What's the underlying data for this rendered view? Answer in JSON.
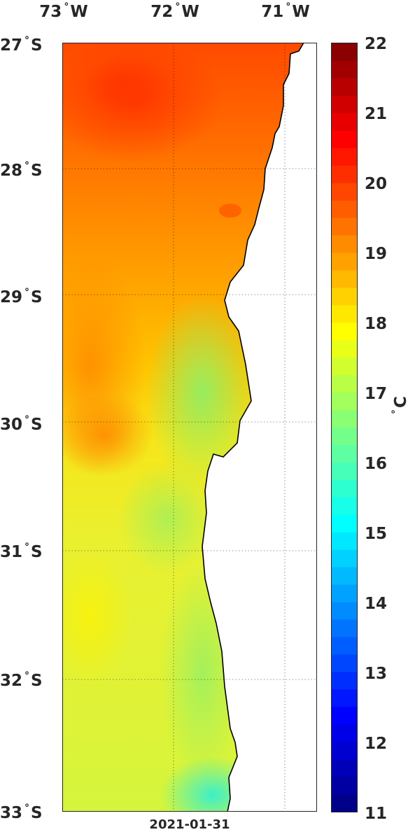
{
  "map": {
    "longitude_labels": [
      {
        "value": "73",
        "unit": "°",
        "hemisphere": "W"
      },
      {
        "value": "72",
        "unit": "°",
        "hemisphere": "W"
      },
      {
        "value": "71",
        "unit": "°",
        "hemisphere": "W"
      }
    ],
    "latitude_labels": [
      {
        "value": "27",
        "unit": "°",
        "hemisphere": "S"
      },
      {
        "value": "28",
        "unit": "°",
        "hemisphere": "S"
      },
      {
        "value": "29",
        "unit": "°",
        "hemisphere": "S"
      },
      {
        "value": "30",
        "unit": "°",
        "hemisphere": "S"
      },
      {
        "value": "31",
        "unit": "°",
        "hemisphere": "S"
      },
      {
        "value": "32",
        "unit": "°",
        "hemisphere": "S"
      },
      {
        "value": "33",
        "unit": "°",
        "hemisphere": "S"
      }
    ],
    "date": "2021-01-31",
    "grid": "dotted",
    "land_color": "#ffffff",
    "coast_color": "#000000"
  },
  "colorbar": {
    "min": 11,
    "max": 22,
    "ticks": [
      "22",
      "21",
      "20",
      "19",
      "18",
      "17",
      "16",
      "15",
      "14",
      "13",
      "12",
      "11"
    ],
    "unit_symbol": "°",
    "unit_letter": "C",
    "colormap": "jet"
  }
}
